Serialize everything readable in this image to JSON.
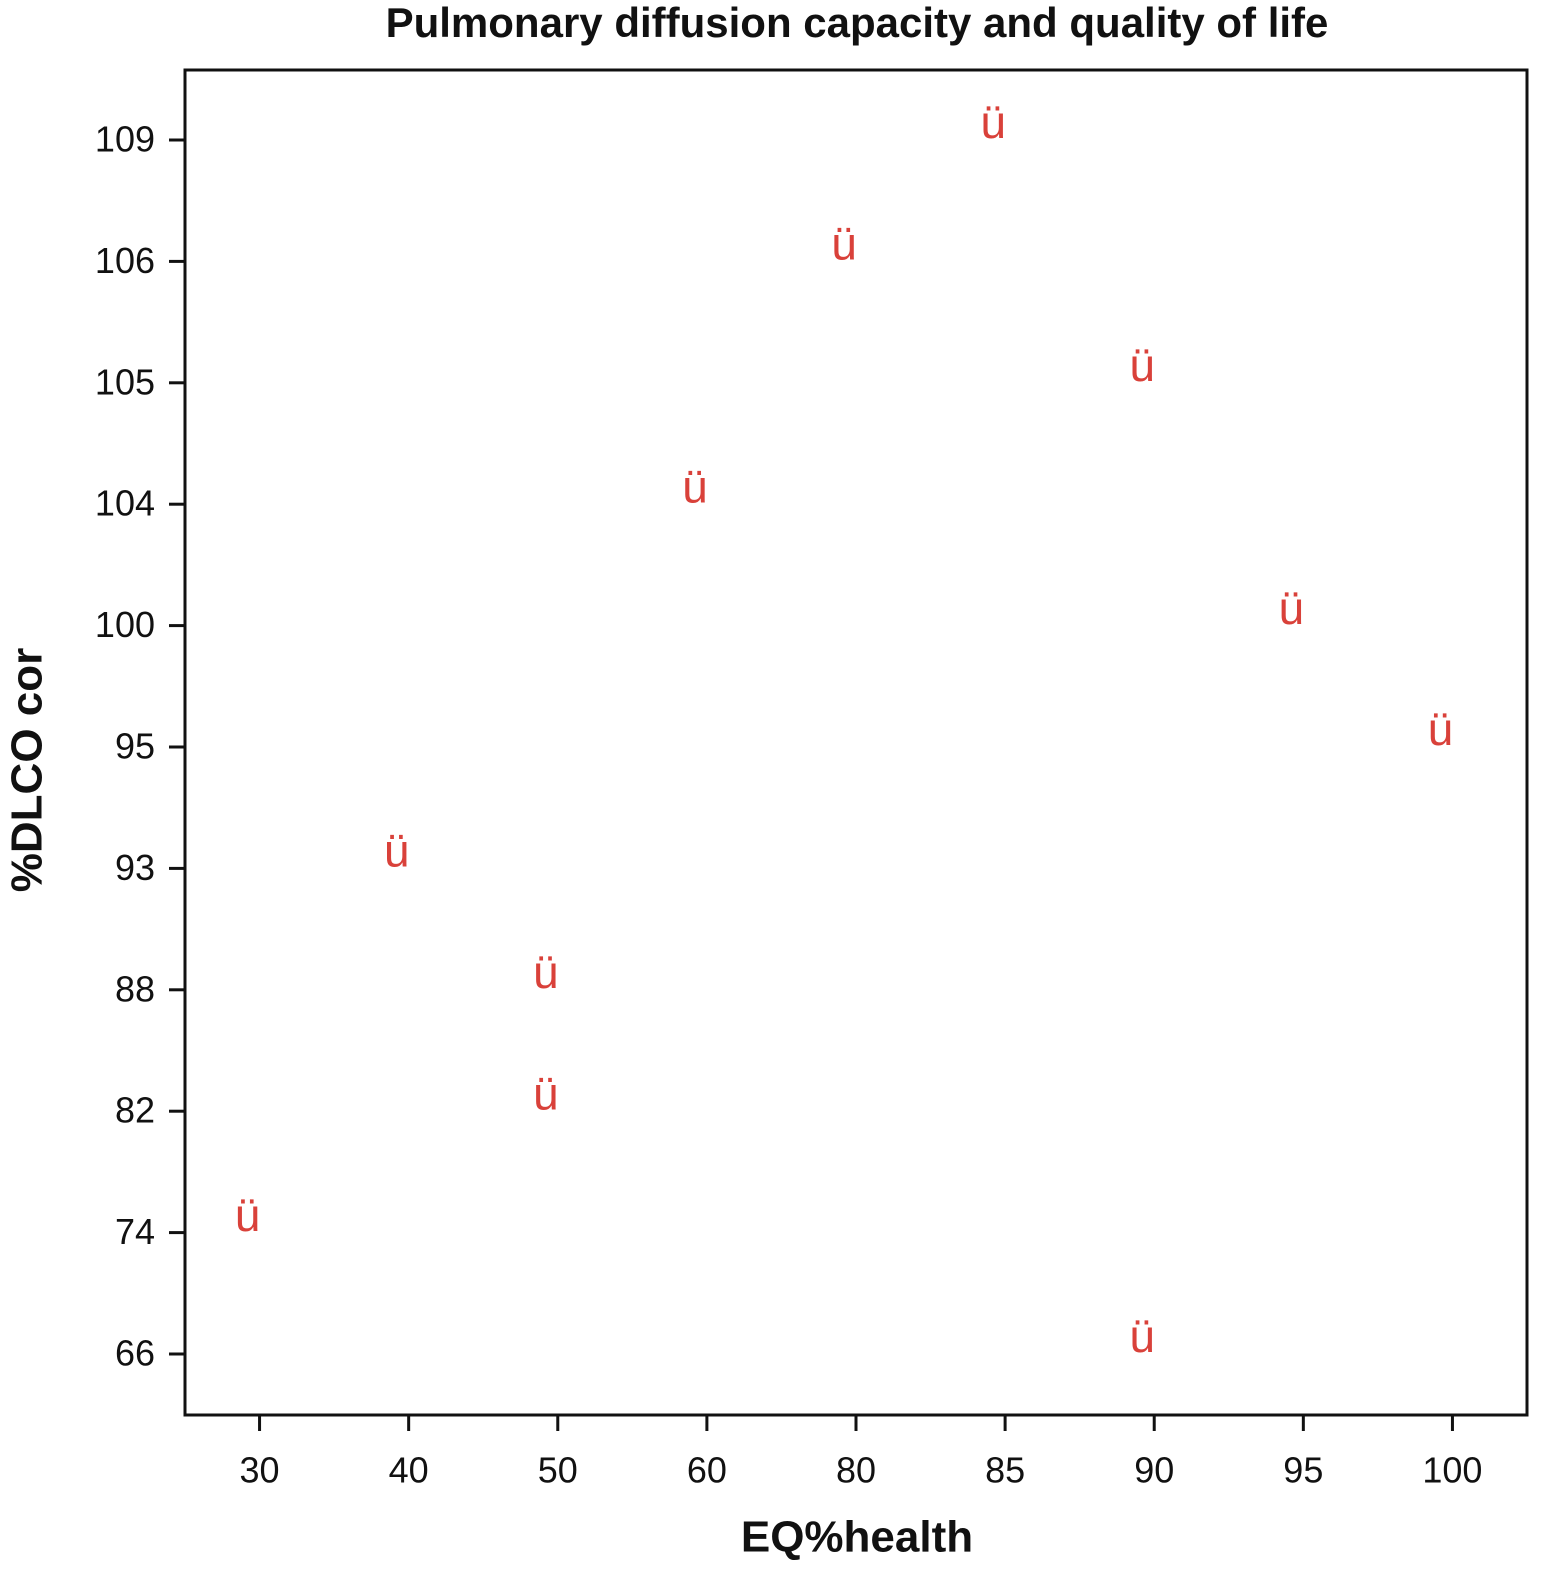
{
  "chart_data": {
    "type": "scatter",
    "title": "Pulmonary diffusion capacity and quality of life",
    "xlabel": "EQ%health",
    "ylabel": "%DLCO cor",
    "xcategories": [
      30,
      40,
      50,
      60,
      80,
      85,
      90,
      95,
      100
    ],
    "ycategories": [
      66,
      74,
      82,
      88,
      93,
      95,
      100,
      104,
      105,
      106,
      109
    ],
    "marker": "ü",
    "color": "#d9413a",
    "x": [
      30,
      40,
      50,
      50,
      60,
      80,
      85,
      90,
      90,
      95,
      100
    ],
    "y": [
      74,
      93,
      88,
      82,
      104,
      106,
      109,
      105,
      66,
      100,
      95
    ]
  }
}
